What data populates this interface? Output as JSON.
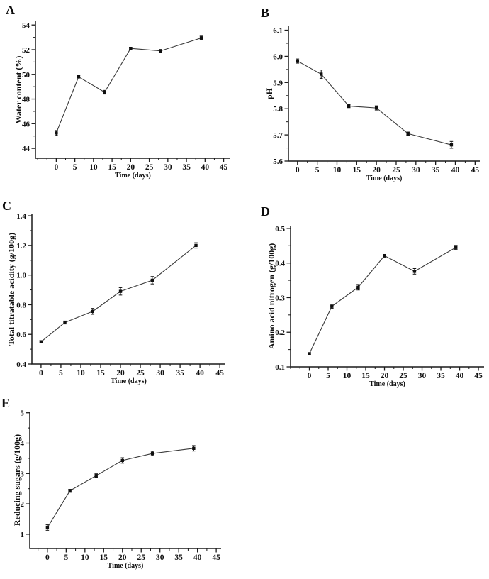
{
  "figure": {
    "background": "#ffffff",
    "axis_color": "#1a1a1a",
    "line_color": "#3a3a3a",
    "marker_color": "#0f0f0f",
    "text_color": "#111111"
  },
  "chart_data": [
    {
      "type": "line",
      "panel_label": "A",
      "ylabel": "Water content (%)",
      "xlabel": "Time (days)",
      "x": [
        0,
        6,
        13,
        20,
        28,
        39
      ],
      "y": [
        45.25,
        49.8,
        48.55,
        52.1,
        51.9,
        52.95
      ],
      "yerr": [
        0.2,
        0.1,
        0.15,
        0.1,
        0.12,
        0.15
      ],
      "xlim": [
        -5.6,
        46.8
      ],
      "ylim": [
        43.2,
        54.3
      ],
      "xticks": [
        0,
        5,
        10,
        15,
        20,
        25,
        30,
        35,
        40,
        45
      ],
      "yticks": [
        44,
        46,
        48,
        50,
        52,
        54
      ],
      "x_minor_step": 2.5,
      "y_minor_step": 1,
      "y_decimals": 0,
      "grid": false,
      "legend": null
    },
    {
      "type": "line",
      "panel_label": "B",
      "ylabel": "pH",
      "xlabel": "Time (days)",
      "x": [
        0,
        6,
        13,
        20,
        28,
        39
      ],
      "y": [
        5.982,
        5.932,
        5.81,
        5.803,
        5.705,
        5.662
      ],
      "yerr": [
        0.008,
        0.016,
        0.006,
        0.008,
        0.006,
        0.013
      ],
      "xlim": [
        -2.3,
        46.2
      ],
      "ylim": [
        5.6,
        6.115
      ],
      "xticks": [
        0,
        5,
        10,
        15,
        20,
        25,
        30,
        35,
        40,
        45
      ],
      "yticks": [
        5.6,
        5.7,
        5.8,
        5.9,
        6.0,
        6.1
      ],
      "x_minor_step": 2.5,
      "y_minor_step": 0.05,
      "y_decimals": 1,
      "grid": false,
      "legend": null
    },
    {
      "type": "line",
      "panel_label": "C",
      "ylabel": "Total titratable acidity (g/100g)",
      "xlabel": "Time (days)",
      "x": [
        0,
        6,
        13,
        20,
        28,
        39
      ],
      "y": [
        0.55,
        0.68,
        0.755,
        0.89,
        0.965,
        1.2
      ],
      "yerr": [
        0.008,
        0.01,
        0.02,
        0.025,
        0.025,
        0.018
      ],
      "xlim": [
        -2.3,
        46.4
      ],
      "ylim": [
        0.4,
        1.41
      ],
      "xticks": [
        0,
        5,
        10,
        15,
        20,
        25,
        30,
        35,
        40,
        45
      ],
      "yticks": [
        0.4,
        0.6,
        0.8,
        1.0,
        1.2,
        1.4
      ],
      "x_minor_step": 2.5,
      "y_minor_step": 0.1,
      "y_decimals": 1,
      "grid": false,
      "legend": null
    },
    {
      "type": "line",
      "panel_label": "D",
      "ylabel": "Amino acid nitrogen  (g/100g)",
      "xlabel": "Time (days)",
      "x": [
        0,
        6,
        13,
        20,
        28,
        39
      ],
      "y": [
        0.138,
        0.275,
        0.33,
        0.421,
        0.376,
        0.445
      ],
      "yerr": [
        0.003,
        0.006,
        0.008,
        0.004,
        0.008,
        0.006
      ],
      "xlim": [
        -5.0,
        46.5
      ],
      "ylim": [
        0.1,
        0.508
      ],
      "xticks": [
        0,
        5,
        10,
        15,
        20,
        25,
        30,
        35,
        40,
        45
      ],
      "yticks": [
        0.1,
        0.2,
        0.3,
        0.4,
        0.5
      ],
      "x_minor_step": 2.5,
      "y_minor_step": 0.05,
      "y_decimals": 1,
      "grid": false,
      "legend": null
    },
    {
      "type": "line",
      "panel_label": "E",
      "ylabel": "Reducing sugars (g/100g)",
      "xlabel": "Time (days)",
      "x": [
        0,
        6,
        13,
        20,
        28,
        39
      ],
      "y": [
        1.22,
        2.43,
        2.93,
        3.43,
        3.66,
        3.83
      ],
      "yerr": [
        0.09,
        0.05,
        0.06,
        0.09,
        0.07,
        0.09
      ],
      "xlim": [
        -4.7,
        46.3
      ],
      "ylim": [
        0.53,
        5.04
      ],
      "xticks": [
        0,
        5,
        10,
        15,
        20,
        25,
        30,
        35,
        40,
        45
      ],
      "yticks": [
        1,
        2,
        3,
        4,
        5
      ],
      "x_minor_step": 2.5,
      "y_minor_step": 0.5,
      "y_decimals": 0,
      "grid": false,
      "legend": null
    }
  ]
}
